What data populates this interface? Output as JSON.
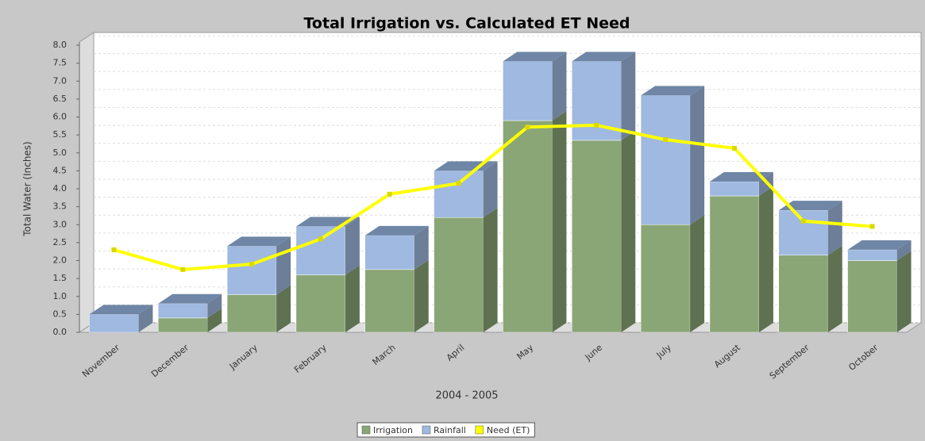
{
  "chart_data": {
    "type": "bar",
    "stacked": true,
    "three_d": true,
    "title": "Total Irrigation vs. Calculated ET Need",
    "x_label": "2004 - 2005",
    "y_label": "Total Water (Inches)",
    "categories": [
      "November",
      "December",
      "January",
      "February",
      "March",
      "April",
      "May",
      "June",
      "July",
      "August",
      "September",
      "October"
    ],
    "series": [
      {
        "name": "Irrigation",
        "type": "bar",
        "color": "#8aa677",
        "values": [
          0,
          0.4,
          1.05,
          1.6,
          1.75,
          3.2,
          5.9,
          5.35,
          3.0,
          3.8,
          2.15,
          2.0
        ]
      },
      {
        "name": "Rainfall",
        "type": "bar",
        "color": "#9fb9e0",
        "values": [
          0.5,
          0.4,
          1.35,
          1.35,
          0.95,
          1.3,
          1.65,
          2.2,
          3.6,
          0.4,
          1.25,
          0.3
        ]
      },
      {
        "name": "Need (ET)",
        "type": "line",
        "color": "#ffff00",
        "values": [
          2.3,
          1.75,
          1.9,
          2.6,
          3.85,
          4.15,
          5.72,
          5.77,
          5.37,
          5.13,
          3.1,
          2.95
        ]
      }
    ],
    "ylim": [
      0,
      8
    ],
    "yticks": [
      {
        "value": 0,
        "label": "0.0"
      },
      0.5,
      {
        "value": 1,
        "label": "1.0"
      },
      1.5,
      {
        "value": 2,
        "label": "2.0"
      },
      2.5,
      {
        "value": 3,
        "label": "3.0"
      },
      3.5,
      {
        "value": 4,
        "label": "4.0"
      },
      4.5,
      {
        "value": 5,
        "label": "5.0"
      },
      5.5,
      {
        "value": 6,
        "label": "6.0"
      },
      6.5,
      {
        "value": 7,
        "label": "7.0"
      },
      7.5,
      {
        "value": 8,
        "label": "8.0"
      }
    ],
    "grid": true,
    "legend": "bottom"
  }
}
